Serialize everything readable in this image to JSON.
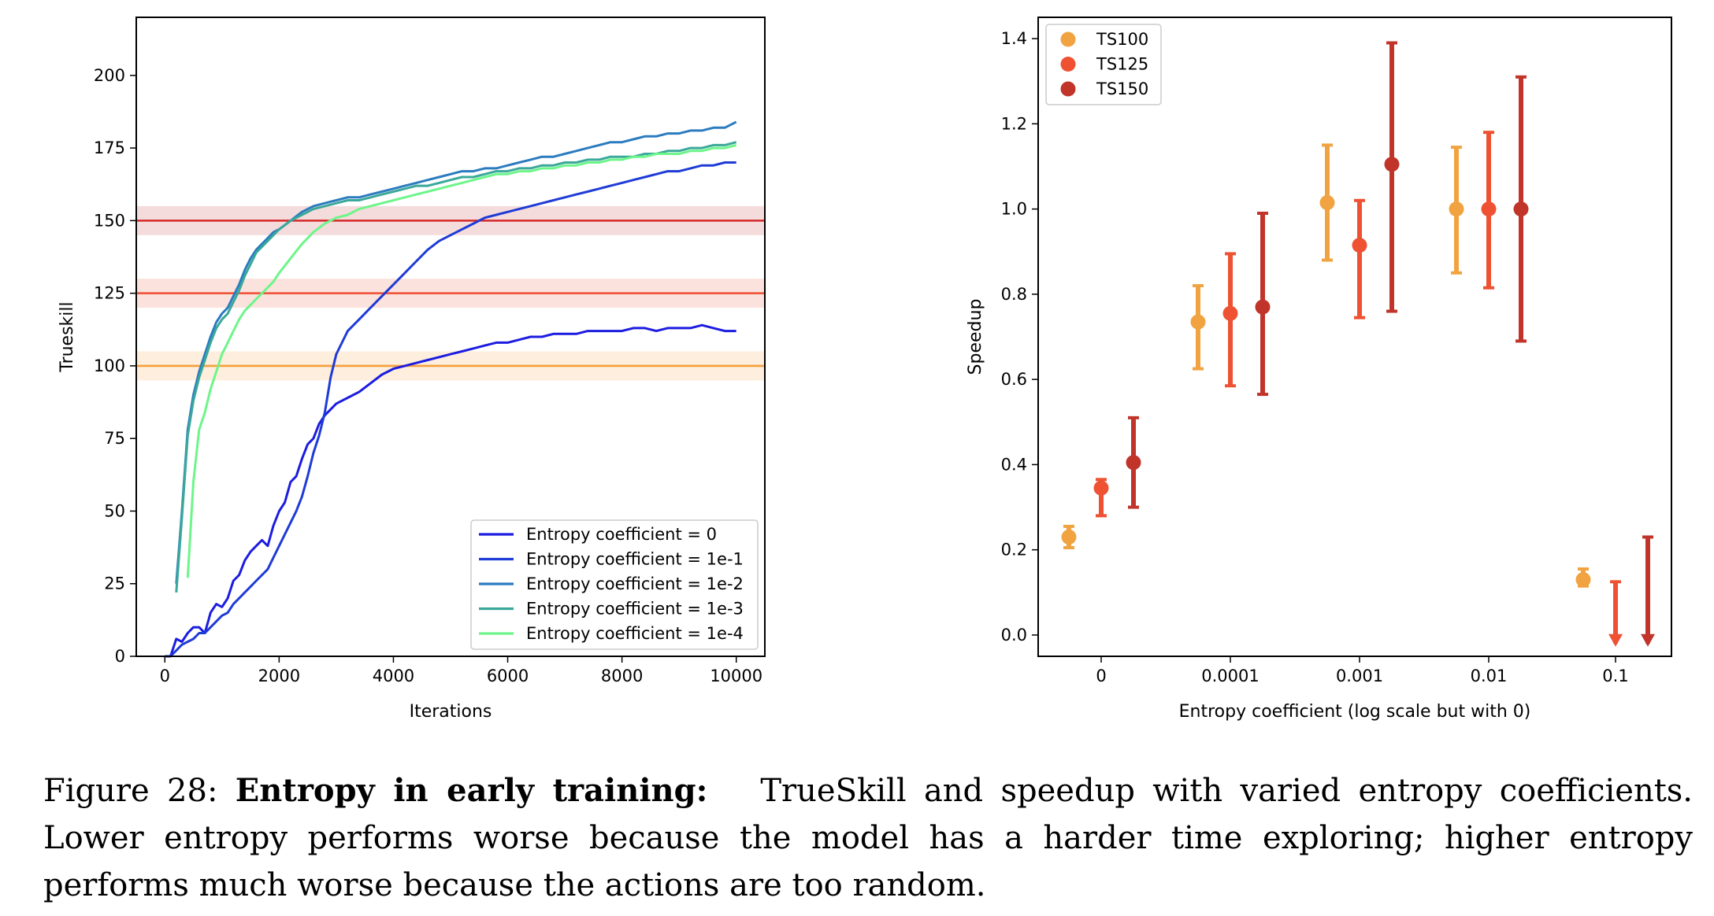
{
  "caption": {
    "label": "Figure 28:",
    "bold_title": "Entropy in early training:",
    "text": "TrueSkill and speedup with varied entropy coefficients. Lower entropy performs worse because the model has a harder time exploring; higher entropy performs much worse because the actions are too random."
  },
  "chart_data": [
    {
      "type": "line",
      "title": "",
      "xlabel": "Iterations",
      "ylabel": "Trueskill",
      "xlim": [
        -500,
        10500
      ],
      "ylim": [
        0,
        220
      ],
      "xticks": [
        0,
        2000,
        4000,
        6000,
        8000,
        10000
      ],
      "yticks": [
        0,
        25,
        50,
        75,
        100,
        125,
        150,
        175,
        200
      ],
      "grid": false,
      "legend_position": "bottom-right",
      "reference_lines": [
        {
          "y": 150,
          "band": [
            145,
            155
          ],
          "color": "#d62728",
          "band_color": "#f5dcdc"
        },
        {
          "y": 125,
          "band": [
            120,
            130
          ],
          "color": "#ee4d32",
          "band_color": "#fbe2dc"
        },
        {
          "y": 100,
          "band": [
            95,
            105
          ],
          "color": "#f5a03a",
          "band_color": "#fdeedd"
        }
      ],
      "series": [
        {
          "name": "Entropy coefficient = 0",
          "color": "#1c1ce0",
          "x": [
            0,
            100,
            200,
            300,
            400,
            500,
            600,
            700,
            800,
            900,
            1000,
            1100,
            1200,
            1300,
            1400,
            1500,
            1600,
            1700,
            1800,
            1900,
            2000,
            2100,
            2200,
            2300,
            2400,
            2500,
            2600,
            2700,
            2800,
            2900,
            3000,
            3200,
            3400,
            3600,
            3800,
            4000,
            4200,
            4400,
            4600,
            4800,
            5000,
            5200,
            5400,
            5600,
            5800,
            6000,
            6200,
            6400,
            6600,
            6800,
            7000,
            7200,
            7400,
            7600,
            7800,
            8000,
            8200,
            8400,
            8600,
            8800,
            9000,
            9200,
            9400,
            9600,
            9800,
            10000
          ],
          "y": [
            0,
            0,
            6,
            5,
            8,
            10,
            10,
            8,
            15,
            18,
            17,
            20,
            26,
            28,
            33,
            36,
            38,
            40,
            38,
            45,
            50,
            53,
            60,
            62,
            68,
            73,
            75,
            80,
            83,
            85,
            87,
            89,
            91,
            94,
            97,
            99,
            100,
            101,
            102,
            103,
            104,
            105,
            106,
            107,
            108,
            108,
            109,
            110,
            110,
            111,
            111,
            111,
            112,
            112,
            112,
            112,
            113,
            113,
            112,
            113,
            113,
            113,
            114,
            113,
            112,
            112
          ]
        },
        {
          "name": "Entropy coefficient = 1e-1",
          "color": "#1f3bd6",
          "x": [
            100,
            200,
            300,
            400,
            500,
            600,
            700,
            800,
            900,
            1000,
            1100,
            1200,
            1300,
            1400,
            1500,
            1600,
            1700,
            1800,
            1900,
            2000,
            2100,
            2200,
            2300,
            2400,
            2500,
            2600,
            2700,
            2800,
            2900,
            3000,
            3200,
            3400,
            3600,
            3800,
            4000,
            4200,
            4400,
            4600,
            4800,
            5000,
            5200,
            5400,
            5600,
            5800,
            6000,
            6200,
            6400,
            6600,
            6800,
            7000,
            7200,
            7400,
            7600,
            7800,
            8000,
            8200,
            8400,
            8600,
            8800,
            9000,
            9200,
            9400,
            9600,
            9800,
            10000
          ],
          "y": [
            0,
            2,
            4,
            5,
            6,
            8,
            8,
            10,
            12,
            14,
            15,
            18,
            20,
            22,
            24,
            26,
            28,
            30,
            34,
            38,
            42,
            46,
            50,
            55,
            62,
            70,
            76,
            84,
            96,
            104,
            112,
            116,
            120,
            124,
            128,
            132,
            136,
            140,
            143,
            145,
            147,
            149,
            151,
            152,
            153,
            154,
            155,
            156,
            157,
            158,
            159,
            160,
            161,
            162,
            163,
            164,
            165,
            166,
            167,
            167,
            168,
            169,
            169,
            170,
            170
          ]
        },
        {
          "name": "Entropy coefficient = 1e-2",
          "color": "#2b7bbf",
          "x": [
            200,
            300,
            400,
            500,
            600,
            700,
            800,
            900,
            1000,
            1100,
            1200,
            1300,
            1400,
            1500,
            1600,
            1700,
            1800,
            1900,
            2000,
            2200,
            2400,
            2600,
            2800,
            3000,
            3200,
            3400,
            3600,
            3800,
            4000,
            4200,
            4400,
            4600,
            4800,
            5000,
            5200,
            5400,
            5600,
            5800,
            6000,
            6200,
            6400,
            6600,
            6800,
            7000,
            7200,
            7400,
            7600,
            7800,
            8000,
            8200,
            8400,
            8600,
            8800,
            9000,
            9200,
            9400,
            9600,
            9800,
            10000
          ],
          "y": [
            25,
            50,
            78,
            90,
            98,
            104,
            110,
            115,
            118,
            120,
            124,
            128,
            133,
            137,
            140,
            142,
            144,
            146,
            147,
            150,
            153,
            155,
            156,
            157,
            158,
            158,
            159,
            160,
            161,
            162,
            163,
            164,
            165,
            166,
            167,
            167,
            168,
            168,
            169,
            170,
            171,
            172,
            172,
            173,
            174,
            175,
            176,
            177,
            177,
            178,
            179,
            179,
            180,
            180,
            181,
            181,
            182,
            182,
            184
          ]
        },
        {
          "name": "Entropy coefficient = 1e-3",
          "color": "#3aa89a",
          "x": [
            200,
            300,
            400,
            500,
            600,
            700,
            800,
            900,
            1000,
            1100,
            1200,
            1300,
            1400,
            1500,
            1600,
            1700,
            1800,
            1900,
            2000,
            2200,
            2400,
            2600,
            2800,
            3000,
            3200,
            3400,
            3600,
            3800,
            4000,
            4200,
            4400,
            4600,
            4800,
            5000,
            5200,
            5400,
            5600,
            5800,
            6000,
            6200,
            6400,
            6600,
            6800,
            7000,
            7200,
            7400,
            7600,
            7800,
            8000,
            8200,
            8400,
            8600,
            8800,
            9000,
            9200,
            9400,
            9600,
            9800,
            10000
          ],
          "y": [
            22,
            48,
            76,
            88,
            96,
            102,
            108,
            113,
            116,
            118,
            122,
            126,
            131,
            135,
            139,
            141,
            143,
            145,
            147,
            150,
            152,
            154,
            155,
            156,
            157,
            157,
            158,
            159,
            160,
            161,
            162,
            162,
            163,
            164,
            165,
            165,
            166,
            167,
            167,
            168,
            168,
            169,
            169,
            170,
            170,
            171,
            171,
            172,
            172,
            172,
            173,
            173,
            174,
            174,
            175,
            175,
            176,
            176,
            177
          ]
        },
        {
          "name": "Entropy coefficient = 1e-4",
          "color": "#6df58a",
          "x": [
            400,
            500,
            600,
            700,
            800,
            900,
            1000,
            1100,
            1200,
            1300,
            1400,
            1500,
            1600,
            1700,
            1800,
            1900,
            2000,
            2200,
            2400,
            2600,
            2800,
            3000,
            3200,
            3400,
            3600,
            3800,
            4000,
            4200,
            4400,
            4600,
            4800,
            5000,
            5200,
            5400,
            5600,
            5800,
            6000,
            6200,
            6400,
            6600,
            6800,
            7000,
            7200,
            7400,
            7600,
            7800,
            8000,
            8200,
            8400,
            8600,
            8800,
            9000,
            9200,
            9400,
            9600,
            9800,
            10000
          ],
          "y": [
            27,
            60,
            78,
            84,
            92,
            98,
            104,
            108,
            112,
            116,
            119,
            121,
            123,
            125,
            127,
            129,
            132,
            137,
            142,
            146,
            149,
            151,
            152,
            154,
            155,
            156,
            157,
            158,
            159,
            160,
            161,
            162,
            163,
            164,
            165,
            166,
            166,
            167,
            167,
            168,
            168,
            169,
            169,
            170,
            170,
            171,
            171,
            172,
            172,
            173,
            173,
            173,
            174,
            174,
            175,
            175,
            176
          ]
        }
      ]
    },
    {
      "type": "scatter",
      "title": "",
      "xlabel": "Entropy coefficient (log scale but with 0)",
      "ylabel": "Speedup",
      "xscale": "symlog",
      "xticks": [
        "0",
        "0.0001",
        "0.001",
        "0.01",
        "0.1"
      ],
      "ylim": [
        -0.05,
        1.45
      ],
      "yticks": [
        0.0,
        0.2,
        0.4,
        0.6,
        0.8,
        1.0,
        1.2,
        1.4
      ],
      "grid": false,
      "legend_position": "top-left",
      "series": [
        {
          "name": "TS100",
          "color": "#f0a340",
          "points": [
            {
              "x": "0",
              "y": 0.23,
              "low": 0.205,
              "high": 0.255
            },
            {
              "x": "0.0001",
              "y": 0.735,
              "low": 0.625,
              "high": 0.82
            },
            {
              "x": "0.001",
              "y": 1.015,
              "low": 0.88,
              "high": 1.15
            },
            {
              "x": "0.01",
              "y": 1.0,
              "low": 0.85,
              "high": 1.145
            },
            {
              "x": "0.1",
              "y": 0.13,
              "low": 0.115,
              "high": 0.155
            }
          ]
        },
        {
          "name": "TS125",
          "color": "#ee5233",
          "points": [
            {
              "x": "0",
              "y": 0.345,
              "low": 0.28,
              "high": 0.365
            },
            {
              "x": "0.0001",
              "y": 0.755,
              "low": 0.585,
              "high": 0.895
            },
            {
              "x": "0.001",
              "y": 0.915,
              "low": 0.745,
              "high": 1.02
            },
            {
              "x": "0.01",
              "y": 1.0,
              "low": 0.815,
              "high": 1.18
            },
            {
              "x": "0.1",
              "y": null,
              "low": -0.02,
              "high": 0.125,
              "arrow": "down"
            }
          ]
        },
        {
          "name": "TS150",
          "color": "#c0342a",
          "points": [
            {
              "x": "0",
              "y": 0.405,
              "low": 0.3,
              "high": 0.51
            },
            {
              "x": "0.0001",
              "y": 0.77,
              "low": 0.565,
              "high": 0.99
            },
            {
              "x": "0.001",
              "y": 1.105,
              "low": 0.76,
              "high": 1.39
            },
            {
              "x": "0.01",
              "y": 1.0,
              "low": 0.69,
              "high": 1.31
            },
            {
              "x": "0.1",
              "y": null,
              "low": -0.02,
              "high": 0.23,
              "arrow": "down"
            }
          ]
        }
      ]
    }
  ]
}
